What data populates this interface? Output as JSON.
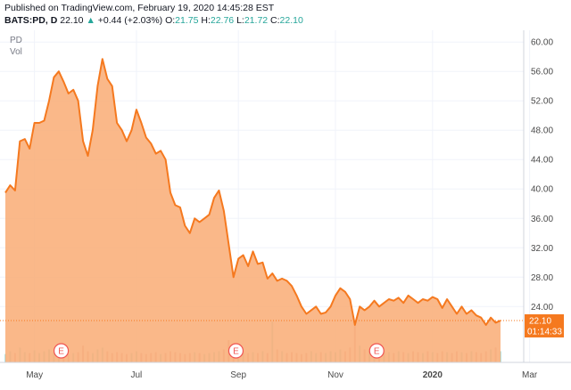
{
  "header": {
    "published": "Published on TradingView.com, February 19, 2020 14:45:28 EST",
    "symbol": "BATS:PD, D",
    "last": "22.10",
    "change": "+0.44 (+2.03%)",
    "o_label": "O:",
    "o_value": "21.75",
    "h_label": "H:",
    "h_value": "22.76",
    "l_label": "L:",
    "l_value": "21.72",
    "c_label": "C:",
    "c_value": "22.10"
  },
  "legend": {
    "symbol": "PD",
    "volume": "Vol"
  },
  "price_tag": {
    "price": "22.10",
    "countdown": "01:14:33"
  },
  "colors": {
    "line": "#f5791f",
    "fill": "#f9ab74",
    "up": "#26a69a",
    "volume": "#c8c8c8",
    "earnings": "#f05350"
  },
  "chart_data": {
    "type": "area",
    "title": "BATS:PD, D",
    "xlabel": "",
    "ylabel": "",
    "ylim": [
      16.4,
      61.6
    ],
    "yticks": [
      24,
      28,
      32,
      36,
      40,
      44,
      48,
      52,
      56,
      60
    ],
    "ytick_labels": [
      "24.00",
      "28.00",
      "32.00",
      "36.00",
      "40.00",
      "44.00",
      "48.00",
      "52.00",
      "56.00",
      "60.00"
    ],
    "xlim": [
      0,
      204
    ],
    "xticks": [
      {
        "x": 12,
        "label": "May"
      },
      {
        "x": 54,
        "label": "Jul"
      },
      {
        "x": 96,
        "label": "Sep"
      },
      {
        "x": 136,
        "label": "Nov"
      },
      {
        "x": 176,
        "label": "2020"
      },
      {
        "x": 216,
        "label": "Mar"
      }
    ],
    "series": [
      {
        "name": "PD",
        "x": [
          0,
          2,
          4,
          6,
          8,
          10,
          12,
          14,
          16,
          18,
          20,
          22,
          24,
          26,
          28,
          30,
          32,
          34,
          36,
          38,
          40,
          42,
          44,
          46,
          48,
          50,
          52,
          54,
          56,
          58,
          60,
          62,
          64,
          66,
          68,
          70,
          72,
          74,
          76,
          78,
          80,
          82,
          84,
          86,
          88,
          90,
          92,
          94,
          96,
          98,
          100,
          102,
          104,
          106,
          108,
          110,
          112,
          114,
          116,
          118,
          120,
          122,
          124,
          126,
          128,
          130,
          132,
          134,
          136,
          138,
          140,
          142,
          144,
          146,
          148,
          150,
          152,
          154,
          156,
          158,
          160,
          162,
          164,
          166,
          168,
          170,
          172,
          174,
          176,
          178,
          180,
          182,
          184,
          186,
          188,
          190,
          192,
          194,
          196,
          198,
          200,
          202,
          204
        ],
        "values": [
          39.5,
          40.5,
          39.8,
          46.5,
          46.8,
          45.5,
          49.0,
          49.0,
          49.3,
          52.0,
          55.2,
          56.0,
          54.6,
          53.0,
          53.5,
          52.0,
          46.5,
          44.5,
          48.0,
          54.0,
          57.7,
          55.0,
          54.0,
          49.0,
          48.0,
          46.5,
          48.0,
          50.8,
          49.0,
          47.0,
          46.2,
          44.8,
          45.2,
          44.0,
          39.5,
          37.8,
          37.5,
          35.0,
          34.0,
          36.0,
          35.5,
          36.0,
          36.5,
          38.8,
          39.8,
          37.0,
          32.5,
          28.0,
          30.5,
          31.0,
          29.5,
          31.5,
          29.8,
          30.0,
          27.8,
          28.5,
          27.5,
          27.8,
          27.5,
          26.8,
          25.5,
          24.0,
          23.0,
          23.5,
          24.0,
          23.0,
          23.2,
          24.0,
          25.5,
          26.5,
          26.0,
          25.0,
          21.5,
          24.0,
          23.5,
          24.0,
          24.8,
          24.0,
          24.5,
          25.0,
          24.8,
          25.2,
          24.5,
          25.5,
          25.0,
          24.5,
          25.0,
          24.8,
          25.3,
          25.0,
          23.8,
          25.0,
          24.0,
          23.0,
          24.0,
          23.0,
          23.5,
          22.8,
          22.5,
          21.5,
          22.5,
          21.8,
          22.1
        ]
      }
    ],
    "volume": [
      0.45,
      0.6,
      0.5,
      0.8,
      0.55,
      0.5,
      0.65,
      0.5,
      0.6,
      0.7,
      0.55,
      0.5,
      0.6,
      0.45,
      0.5,
      0.55,
      0.9,
      0.6,
      0.5,
      0.7,
      0.8,
      0.6,
      0.5,
      0.55,
      0.5,
      0.45,
      0.5,
      0.6,
      0.5,
      0.45,
      0.5,
      0.55,
      0.45,
      0.5,
      0.6,
      0.55,
      0.5,
      0.45,
      0.5,
      0.55,
      0.5,
      0.45,
      0.5,
      0.55,
      0.6,
      0.7,
      1.2,
      0.8,
      0.6,
      0.55,
      0.5,
      0.55,
      0.5,
      0.6,
      0.5,
      2.2,
      0.7,
      0.6,
      0.5,
      0.55,
      0.5,
      0.45,
      0.5,
      0.6,
      0.5,
      0.55,
      0.5,
      0.6,
      0.55,
      0.7,
      0.6,
      0.8,
      2.1,
      0.9,
      0.7,
      0.6,
      0.55,
      0.5,
      0.6,
      0.55,
      0.5,
      0.6,
      0.55,
      0.5,
      0.6,
      0.55,
      0.5,
      0.6,
      0.55,
      0.5,
      0.6,
      0.55,
      0.5,
      0.6,
      0.55,
      0.5,
      0.6,
      0.55,
      0.5,
      0.6,
      0.7,
      0.8,
      0.6
    ],
    "volume_max": 2.4,
    "earnings_markers": [
      {
        "x": 23,
        "label": "E"
      },
      {
        "x": 95,
        "label": "E"
      },
      {
        "x": 153,
        "label": "E"
      }
    ],
    "last_price_line": 22.1,
    "grid": true
  }
}
